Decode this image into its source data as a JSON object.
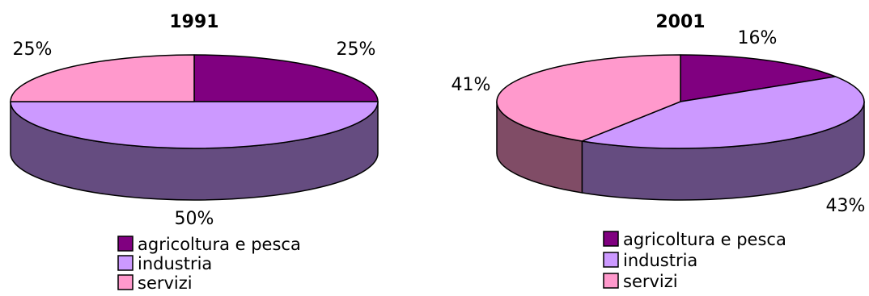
{
  "chart_data": [
    {
      "type": "pie",
      "style": "3d",
      "title": "1991",
      "categories": [
        "agricoltura e pesca",
        "industria",
        "servizi"
      ],
      "values": [
        25,
        50,
        25
      ],
      "value_labels": [
        "25%",
        "50%",
        "25%"
      ],
      "legend": {
        "placement": "bottom",
        "entries": [
          "agricoltura e pesca",
          "industria",
          "servizi"
        ]
      }
    },
    {
      "type": "pie",
      "style": "3d",
      "title": "2001",
      "categories": [
        "agricoltura e pesca",
        "industria",
        "servizi"
      ],
      "values": [
        16,
        43,
        41
      ],
      "value_labels": [
        "16%",
        "43%",
        "41%"
      ],
      "legend": {
        "placement": "bottom",
        "entries": [
          "agricoltura e pesca",
          "industria",
          "servizi"
        ]
      }
    }
  ],
  "colors": {
    "agricoltura e pesca": {
      "top": "#800080",
      "side": "#400040"
    },
    "industria": {
      "top": "#CC99FF",
      "side": "#654C80"
    },
    "servizi": {
      "top": "#FF99CC",
      "side": "#804C66"
    },
    "outline": "#000000",
    "background": "#FFFFFF"
  }
}
